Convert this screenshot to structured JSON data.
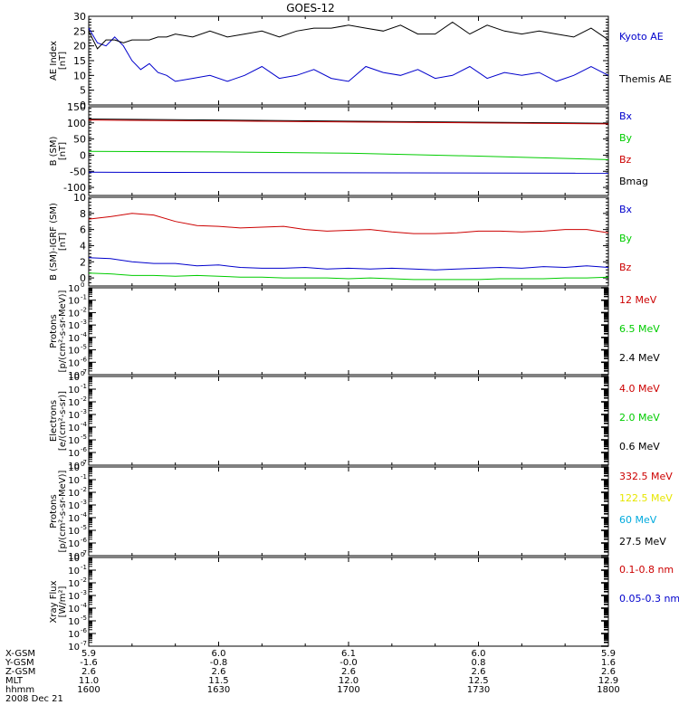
{
  "title": "GOES-12",
  "colors": {
    "black": "#000000",
    "blue": "#0000cc",
    "green": "#00cc00",
    "red": "#cc0000",
    "yellow": "#e6e600",
    "cyan": "#00aadd"
  },
  "chart_data": [
    {
      "id": "ae",
      "type": "line",
      "ylabel_lines": [
        "AE Index",
        "[nT]"
      ],
      "ylim": [
        0,
        30
      ],
      "yticks": [
        0,
        5,
        10,
        15,
        20,
        25,
        30
      ],
      "yscale": "linear",
      "xlim": [
        0,
        120
      ],
      "series": [
        {
          "name": "Kyoto AE",
          "color": "#0000cc",
          "x": [
            0,
            2,
            4,
            6,
            8,
            10,
            12,
            14,
            16,
            18,
            20,
            24,
            28,
            32,
            36,
            40,
            44,
            48,
            52,
            56,
            60,
            64,
            68,
            72,
            76,
            80,
            84,
            88,
            92,
            96,
            100,
            104,
            108,
            112,
            116,
            120
          ],
          "y": [
            26,
            21,
            20,
            23,
            20,
            15,
            12,
            14,
            11,
            10,
            8,
            9,
            10,
            8,
            10,
            13,
            9,
            10,
            12,
            9,
            8,
            13,
            11,
            10,
            12,
            9,
            10,
            13,
            9,
            11,
            10,
            11,
            8,
            10,
            13,
            10
          ]
        },
        {
          "name": "Themis AE",
          "color": "#000000",
          "x": [
            0,
            2,
            4,
            6,
            8,
            10,
            12,
            14,
            16,
            18,
            20,
            24,
            28,
            32,
            36,
            40,
            44,
            48,
            52,
            56,
            60,
            64,
            68,
            72,
            76,
            80,
            84,
            88,
            92,
            96,
            100,
            104,
            108,
            112,
            116,
            120
          ],
          "y": [
            25,
            19,
            22,
            22,
            21,
            22,
            22,
            22,
            23,
            23,
            24,
            23,
            25,
            23,
            24,
            25,
            23,
            25,
            26,
            26,
            27,
            26,
            25,
            27,
            24,
            24,
            28,
            24,
            27,
            25,
            24,
            25,
            24,
            23,
            26,
            22
          ]
        }
      ]
    },
    {
      "id": "bsm",
      "type": "line",
      "ylabel_lines": [
        "B (SM)",
        "[nT]"
      ],
      "ylim": [
        -125,
        150
      ],
      "yticks": [
        -100,
        -50,
        0,
        50,
        100,
        150
      ],
      "yscale": "linear",
      "xlim": [
        0,
        120
      ],
      "legend": [
        {
          "name": "Bx",
          "color": "#0000cc"
        },
        {
          "name": "By",
          "color": "#00cc00"
        },
        {
          "name": "Bz",
          "color": "#cc0000"
        },
        {
          "name": "Bmag",
          "color": "#000000"
        }
      ],
      "series": [
        {
          "name": "Bmag",
          "color": "#000000",
          "x": [
            0,
            120
          ],
          "y": [
            112,
            99
          ]
        },
        {
          "name": "Bz",
          "color": "#cc0000",
          "x": [
            0,
            120
          ],
          "y": [
            109,
            97
          ]
        },
        {
          "name": "By",
          "color": "#00cc00",
          "x": [
            0,
            30,
            60,
            90,
            120
          ],
          "y": [
            12,
            10,
            6,
            -3,
            -14
          ]
        },
        {
          "name": "Bx",
          "color": "#0000cc",
          "x": [
            0,
            120
          ],
          "y": [
            -53,
            -56
          ]
        }
      ]
    },
    {
      "id": "bmodel",
      "type": "line",
      "ylabel_lines": [
        "B (SM)-IGRF (SM)",
        "[nT]"
      ],
      "ylim": [
        -1,
        10
      ],
      "yticks": [
        0,
        2,
        4,
        6,
        8,
        10
      ],
      "yscale": "linear",
      "xlim": [
        0,
        120
      ],
      "legend": [
        {
          "name": "Bx",
          "color": "#0000cc"
        },
        {
          "name": "By",
          "color": "#00cc00"
        },
        {
          "name": "Bz",
          "color": "#cc0000"
        }
      ],
      "series": [
        {
          "name": "Bz",
          "color": "#cc0000",
          "x": [
            0,
            5,
            10,
            15,
            20,
            25,
            30,
            35,
            40,
            45,
            50,
            55,
            60,
            65,
            70,
            75,
            80,
            85,
            90,
            95,
            100,
            105,
            110,
            115,
            120
          ],
          "y": [
            7.3,
            7.6,
            8.0,
            7.8,
            7.0,
            6.5,
            6.4,
            6.2,
            6.3,
            6.4,
            6.0,
            5.8,
            5.9,
            6.0,
            5.7,
            5.5,
            5.5,
            5.6,
            5.8,
            5.8,
            5.7,
            5.8,
            6.0,
            6.0,
            5.6
          ]
        },
        {
          "name": "Bx",
          "color": "#0000cc",
          "x": [
            0,
            5,
            10,
            15,
            20,
            25,
            30,
            35,
            40,
            45,
            50,
            55,
            60,
            65,
            70,
            75,
            80,
            85,
            90,
            95,
            100,
            105,
            110,
            115,
            120
          ],
          "y": [
            2.5,
            2.4,
            2.0,
            1.8,
            1.8,
            1.5,
            1.6,
            1.3,
            1.2,
            1.2,
            1.3,
            1.1,
            1.2,
            1.1,
            1.2,
            1.1,
            1.0,
            1.1,
            1.2,
            1.3,
            1.2,
            1.4,
            1.3,
            1.5,
            1.3
          ]
        },
        {
          "name": "By",
          "color": "#00cc00",
          "x": [
            0,
            5,
            10,
            15,
            20,
            25,
            30,
            35,
            40,
            45,
            50,
            55,
            60,
            65,
            70,
            75,
            80,
            85,
            90,
            95,
            100,
            105,
            110,
            115,
            120
          ],
          "y": [
            0.6,
            0.5,
            0.3,
            0.3,
            0.2,
            0.3,
            0.2,
            0.1,
            0.1,
            0.0,
            0.0,
            0.0,
            -0.1,
            0.0,
            -0.1,
            -0.2,
            -0.2,
            -0.2,
            -0.2,
            -0.1,
            -0.1,
            -0.1,
            0.0,
            0.0,
            0.1
          ]
        }
      ]
    },
    {
      "id": "protons-low",
      "type": "line",
      "ylabel_lines": [
        "Protons",
        "[p/(cm²-s-sr-MeV)]"
      ],
      "yscale": "log",
      "log_min": -7,
      "log_max": 0,
      "ytick_exps": [
        0,
        -1,
        -2,
        -3,
        -4,
        -5,
        -6,
        -7
      ],
      "legend": [
        {
          "name": "12 MeV",
          "color": "#cc0000"
        },
        {
          "name": "6.5 MeV",
          "color": "#00cc00"
        },
        {
          "name": "2.4 MeV",
          "color": "#000000"
        }
      ],
      "series": []
    },
    {
      "id": "electrons",
      "type": "line",
      "ylabel_lines": [
        "Electrons",
        "[e/(cm²-s-sr)]"
      ],
      "yscale": "log",
      "log_min": -7,
      "log_max": 0,
      "ytick_exps": [
        0,
        -1,
        -2,
        -3,
        -4,
        -5,
        -6,
        -7
      ],
      "legend": [
        {
          "name": "4.0 MeV",
          "color": "#cc0000"
        },
        {
          "name": "2.0 MeV",
          "color": "#00cc00"
        },
        {
          "name": "0.6 MeV",
          "color": "#000000"
        }
      ],
      "series": []
    },
    {
      "id": "protons-high",
      "type": "line",
      "ylabel_lines": [
        "Protons",
        "[p/(cm²-s-sr-MeV)]"
      ],
      "yscale": "log",
      "log_min": -7,
      "log_max": 0,
      "ytick_exps": [
        0,
        -1,
        -2,
        -3,
        -4,
        -5,
        -6,
        -7
      ],
      "legend": [
        {
          "name": "332.5 MeV",
          "color": "#cc0000"
        },
        {
          "name": "122.5 MeV",
          "color": "#e6e600"
        },
        {
          "name": "60 MeV",
          "color": "#00aadd"
        },
        {
          "name": "27.5 MeV",
          "color": "#000000"
        }
      ],
      "series": []
    },
    {
      "id": "xray",
      "type": "line",
      "ylabel_lines": [
        "Xray Flux",
        "[W/m²]"
      ],
      "yscale": "log",
      "log_min": -7,
      "log_max": 0,
      "ytick_exps": [
        0,
        -1,
        -2,
        -3,
        -4,
        -5,
        -6,
        -7
      ],
      "legend": [
        {
          "name": "0.1-0.8 nm",
          "color": "#cc0000"
        },
        {
          "name": "0.05-0.3 nm",
          "color": "#0000cc"
        }
      ],
      "series": []
    }
  ],
  "x_axis": {
    "row_labels": [
      "X-GSM",
      "Y-GSM",
      "Z-GSM",
      "MLT",
      "hhmm"
    ],
    "ticks": [
      {
        "x": 0,
        "values": [
          "5.9",
          "-1.6",
          "2.6",
          "11.0",
          "1600"
        ]
      },
      {
        "x": 30,
        "values": [
          "6.0",
          "-0.8",
          "2.6",
          "11.5",
          "1630"
        ]
      },
      {
        "x": 60,
        "values": [
          "6.1",
          "-0.0",
          "2.6",
          "12.0",
          "1700"
        ]
      },
      {
        "x": 90,
        "values": [
          "6.0",
          "0.8",
          "2.6",
          "12.5",
          "1730"
        ]
      },
      {
        "x": 120,
        "values": [
          "5.9",
          "1.6",
          "2.6",
          "12.9",
          "1800"
        ]
      }
    ],
    "date": "2008 Dec 21"
  }
}
